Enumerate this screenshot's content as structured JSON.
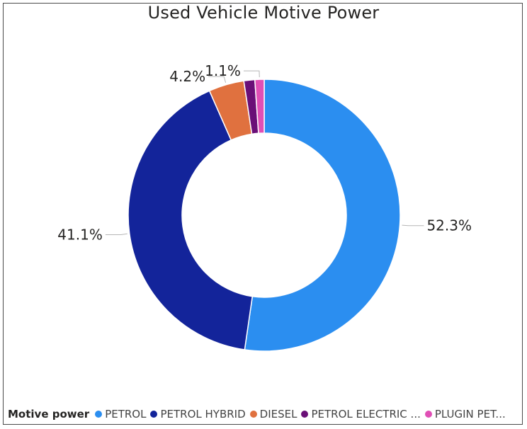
{
  "chart_data": {
    "type": "pie",
    "title": "Used Vehicle Motive Power",
    "categories": [
      "PETROL",
      "PETROL HYBRID",
      "DIESEL",
      "PETROL ELECTRIC HYBRID",
      "PLUGIN PETROL HYBRID"
    ],
    "values": [
      52.3,
      41.1,
      4.2,
      1.3,
      1.1
    ],
    "data_labels": [
      "52.3%",
      "41.1%",
      "4.2%",
      "",
      "1.1%"
    ],
    "colors": [
      "#2b8ef0",
      "#13249a",
      "#e0713f",
      "#6a0f77",
      "#e04fb5"
    ],
    "donut": true,
    "legend_position": "bottom-left"
  },
  "legend": {
    "title": "Motive power",
    "items": [
      {
        "label": "PETROL",
        "color": "#2b8ef0"
      },
      {
        "label": "PETROL HYBRID",
        "color": "#13249a"
      },
      {
        "label": "DIESEL",
        "color": "#e0713f"
      },
      {
        "label": "PETROL ELECTRIC ...",
        "color": "#6a0f77"
      },
      {
        "label": "PLUGIN PET...",
        "color": "#e04fb5"
      }
    ]
  }
}
